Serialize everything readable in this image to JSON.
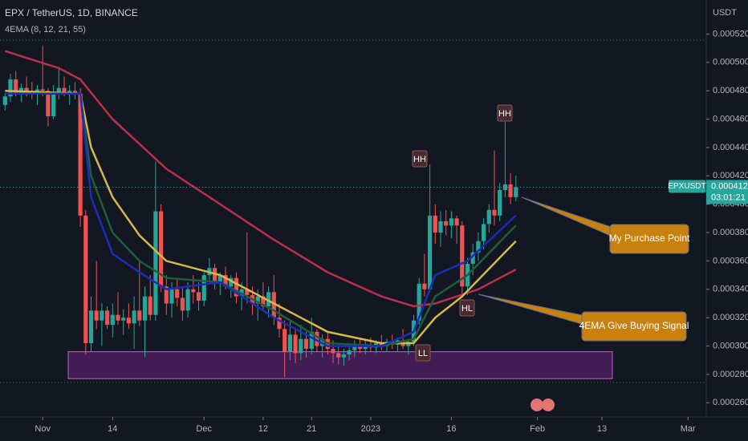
{
  "chart_data": {
    "type": "candlestick",
    "title": "EPX / TetherUS, 1D, BINANCE",
    "indicator_label": "4EMA (8, 12, 21, 55)",
    "y_axis_unit": "USDT",
    "symbol_tag": "EPXUSDT",
    "countdown": "03:01:21",
    "up_color": "#26a69a",
    "down_color": "#ef5350",
    "ylim": [
      0.00025,
      0.000544
    ],
    "yticks": [
      {
        "value": 0.00026,
        "label": "0.000260"
      },
      {
        "value": 0.00028,
        "label": "0.000280"
      },
      {
        "value": 0.0003,
        "label": "0.000300"
      },
      {
        "value": 0.00032,
        "label": "0.000320"
      },
      {
        "value": 0.00034,
        "label": "0.000340"
      },
      {
        "value": 0.00036,
        "label": "0.000360"
      },
      {
        "value": 0.00038,
        "label": "0.000380"
      },
      {
        "value": 0.0004,
        "label": "0.000400"
      },
      {
        "value": 0.00042,
        "label": "0.000420"
      },
      {
        "value": 0.00044,
        "label": "0.000440"
      },
      {
        "value": 0.00046,
        "label": "0.000460"
      },
      {
        "value": 0.00048,
        "label": "0.000480"
      },
      {
        "value": 0.0005,
        "label": "0.000500"
      },
      {
        "value": 0.00052,
        "label": "0.000520"
      }
    ],
    "xlim": [
      -1,
      130
    ],
    "xticks": [
      {
        "value": 7,
        "label": "Nov"
      },
      {
        "value": 20,
        "label": "14"
      },
      {
        "value": 37,
        "label": "Dec"
      },
      {
        "value": 48,
        "label": "12"
      },
      {
        "value": 57,
        "label": "21"
      },
      {
        "value": 68,
        "label": "2023"
      },
      {
        "value": 83,
        "label": "16"
      },
      {
        "value": 99,
        "label": "Feb"
      },
      {
        "value": 111,
        "label": "13"
      },
      {
        "value": 127,
        "label": "Mar"
      }
    ],
    "last_price": {
      "value": 0.000412,
      "label": "0.000412"
    },
    "zone": {
      "low": 0.000277,
      "high": 0.000296
    },
    "candles": [
      [
        0.00047,
        0.000478,
        0.000466,
        0.000476
      ],
      [
        0.000476,
        0.000492,
        0.000472,
        0.000488
      ],
      [
        0.000488,
        0.000494,
        0.000476,
        0.000478
      ],
      [
        0.000478,
        0.000485,
        0.000472,
        0.000482
      ],
      [
        0.000482,
        0.00049,
        0.000476,
        0.00048
      ],
      [
        0.00048,
        0.000486,
        0.000474,
        0.000478
      ],
      [
        0.000478,
        0.000484,
        0.00047,
        0.000481
      ],
      [
        0.000481,
        0.000512,
        0.000476,
        0.00048
      ],
      [
        0.00048,
        0.000482,
        0.000455,
        0.000462
      ],
      [
        0.000462,
        0.000484,
        0.00046,
        0.000478
      ],
      [
        0.000478,
        0.000496,
        0.000474,
        0.000482
      ],
      [
        0.000482,
        0.00049,
        0.000476,
        0.000478
      ],
      [
        0.000478,
        0.000484,
        0.00047,
        0.00048
      ],
      [
        0.00048,
        0.000486,
        0.000474,
        0.000478
      ],
      [
        0.000478,
        0.000482,
        0.000384,
        0.000392
      ],
      [
        0.000392,
        0.000396,
        0.000294,
        0.000302
      ],
      [
        0.000302,
        0.000335,
        0.000296,
        0.000325
      ],
      [
        0.000325,
        0.00036,
        0.000312,
        0.000318
      ],
      [
        0.000318,
        0.00033,
        0.0003,
        0.000325
      ],
      [
        0.000325,
        0.000328,
        0.000312,
        0.000315
      ],
      [
        0.000315,
        0.00033,
        0.000306,
        0.000322
      ],
      [
        0.000322,
        0.000338,
        0.000315,
        0.000318
      ],
      [
        0.000318,
        0.000326,
        0.000308,
        0.00032
      ],
      [
        0.00032,
        0.00033,
        0.000312,
        0.000316
      ],
      [
        0.000316,
        0.000335,
        0.000298,
        0.000325
      ],
      [
        0.000325,
        0.00036,
        0.000314,
        0.000318
      ],
      [
        0.000318,
        0.000342,
        0.000292,
        0.000335
      ],
      [
        0.000335,
        0.00035,
        0.000318,
        0.000322
      ],
      [
        0.000322,
        0.00043,
        0.000318,
        0.000395
      ],
      [
        0.000395,
        0.0004,
        0.000338,
        0.000342
      ],
      [
        0.000342,
        0.00035,
        0.000322,
        0.00033
      ],
      [
        0.00033,
        0.000345,
        0.00032,
        0.00034
      ],
      [
        0.00034,
        0.000348,
        0.000328,
        0.000334
      ],
      [
        0.000334,
        0.000342,
        0.000318,
        0.000325
      ],
      [
        0.000325,
        0.000345,
        0.00032,
        0.00034
      ],
      [
        0.00034,
        0.00035,
        0.00033,
        0.000338
      ],
      [
        0.000338,
        0.000345,
        0.000325,
        0.000332
      ],
      [
        0.000332,
        0.000352,
        0.000328,
        0.00035
      ],
      [
        0.00035,
        0.000362,
        0.000345,
        0.000355
      ],
      [
        0.000355,
        0.000358,
        0.00034,
        0.000344
      ],
      [
        0.000344,
        0.000352,
        0.000336,
        0.00035
      ],
      [
        0.00035,
        0.000356,
        0.00034,
        0.000342
      ],
      [
        0.000342,
        0.00035,
        0.000334,
        0.000348
      ],
      [
        0.000348,
        0.000352,
        0.00033,
        0.000335
      ],
      [
        0.000335,
        0.000345,
        0.000325,
        0.00034
      ],
      [
        0.00034,
        0.00038,
        0.00033,
        0.000336
      ],
      [
        0.000336,
        0.000342,
        0.000322,
        0.00033
      ],
      [
        0.00033,
        0.00034,
        0.000318,
        0.000335
      ],
      [
        0.000335,
        0.000345,
        0.000326,
        0.000328
      ],
      [
        0.000328,
        0.000342,
        0.00032,
        0.000338
      ],
      [
        0.000338,
        0.00035,
        0.000315,
        0.00032
      ],
      [
        0.00032,
        0.00033,
        0.000306,
        0.000312
      ],
      [
        0.000312,
        0.000318,
        0.000278,
        0.000296
      ],
      [
        0.000296,
        0.000318,
        0.00029,
        0.000308
      ],
      [
        0.000308,
        0.000312,
        0.000288,
        0.000295
      ],
      [
        0.000295,
        0.000315,
        0.00029,
        0.000305
      ],
      [
        0.000305,
        0.00031,
        0.000292,
        0.000298
      ],
      [
        0.000298,
        0.00032,
        0.000294,
        0.00031
      ],
      [
        0.00031,
        0.000312,
        0.000296,
        0.0003
      ],
      [
        0.0003,
        0.000308,
        0.000292,
        0.000305
      ],
      [
        0.000305,
        0.00031,
        0.000294,
        0.000298
      ],
      [
        0.000298,
        0.000304,
        0.000288,
        0.000295
      ],
      [
        0.000295,
        0.0003,
        0.000287,
        0.000292
      ],
      [
        0.000292,
        0.000298,
        0.000286,
        0.000294
      ],
      [
        0.000294,
        0.000302,
        0.00029,
        0.000297
      ],
      [
        0.000297,
        0.000304,
        0.000292,
        0.0003
      ],
      [
        0.0003,
        0.000306,
        0.000295,
        0.000298
      ],
      [
        0.000298,
        0.000304,
        0.000294,
        0.000301
      ],
      [
        0.000301,
        0.000306,
        0.000296,
        0.000299
      ],
      [
        0.000299,
        0.000304,
        0.000295,
        0.000302
      ],
      [
        0.000302,
        0.000308,
        0.000297,
        0.0003
      ],
      [
        0.0003,
        0.000305,
        0.000296,
        0.000303
      ],
      [
        0.000303,
        0.000308,
        0.000298,
        0.000301
      ],
      [
        0.000301,
        0.000306,
        0.000296,
        0.000304
      ],
      [
        0.000304,
        0.000312,
        0.000298,
        0.0003
      ],
      [
        0.0003,
        0.000305,
        0.000294,
        0.000303
      ],
      [
        0.000303,
        0.000322,
        0.0003,
        0.000318
      ],
      [
        0.000318,
        0.000348,
        0.000315,
        0.000344
      ],
      [
        0.000344,
        0.000365,
        0.000335,
        0.00034
      ],
      [
        0.00034,
        0.000428,
        0.000338,
        0.000392
      ],
      [
        0.000392,
        0.0004,
        0.000372,
        0.00038
      ],
      [
        0.00038,
        0.000395,
        0.00037,
        0.000388
      ],
      [
        0.000388,
        0.000396,
        0.000378,
        0.000385
      ],
      [
        0.000385,
        0.000395,
        0.000376,
        0.00039
      ],
      [
        0.00039,
        0.000392,
        0.000372,
        0.000385
      ],
      [
        0.000385,
        0.000388,
        0.000335,
        0.000342
      ],
      [
        0.000342,
        0.000362,
        0.000336,
        0.000358
      ],
      [
        0.000358,
        0.000372,
        0.00035,
        0.000366
      ],
      [
        0.000366,
        0.00038,
        0.00036,
        0.000374
      ],
      [
        0.000374,
        0.00039,
        0.000368,
        0.000386
      ],
      [
        0.000386,
        0.0004,
        0.00038,
        0.000396
      ],
      [
        0.000396,
        0.000438,
        0.000385,
        0.000392
      ],
      [
        0.000392,
        0.000415,
        0.000388,
        0.00041
      ],
      [
        0.00041,
        0.000458,
        0.000405,
        0.000414
      ],
      [
        0.000414,
        0.000422,
        0.0004,
        0.000405
      ],
      [
        0.000405,
        0.00042,
        0.000402,
        0.000412
      ]
    ],
    "series": [
      {
        "color": "#b8304a",
        "x": [
          0,
          10,
          14,
          20,
          30,
          40,
          50,
          60,
          70,
          76,
          80,
          88,
          95
        ],
        "values": [
          0.000508,
          0.000496,
          0.000488,
          0.00046,
          0.000425,
          0.0004,
          0.000375,
          0.000352,
          0.000335,
          0.000328,
          0.00033,
          0.00034,
          0.000354
        ]
      },
      {
        "color": "#d4b84a",
        "x": [
          0,
          14,
          16,
          20,
          25,
          30,
          40,
          50,
          60,
          70,
          76,
          80,
          85,
          95
        ],
        "values": [
          0.00048,
          0.000478,
          0.00044,
          0.000405,
          0.000378,
          0.00036,
          0.00035,
          0.00033,
          0.00031,
          0.000302,
          0.000302,
          0.00032,
          0.000335,
          0.000374
        ]
      },
      {
        "color": "#1f5e3a",
        "x": [
          0,
          14,
          16,
          20,
          25,
          30,
          40,
          50,
          60,
          70,
          76,
          80,
          86,
          95
        ],
        "values": [
          0.000478,
          0.000478,
          0.00042,
          0.00038,
          0.00036,
          0.000348,
          0.000345,
          0.000325,
          0.000302,
          0.0003,
          0.000305,
          0.000335,
          0.00035,
          0.000385
        ]
      },
      {
        "color": "#1a2db8",
        "x": [
          0,
          14,
          16,
          20,
          25,
          30,
          40,
          50,
          60,
          70,
          76,
          80,
          86,
          95
        ],
        "values": [
          0.000478,
          0.000478,
          0.000405,
          0.000365,
          0.000352,
          0.00034,
          0.000345,
          0.00032,
          0.0003,
          0.0003,
          0.00031,
          0.00035,
          0.00036,
          0.000392
        ]
      }
    ],
    "annotations": [
      "HH",
      "HH",
      "HL",
      "LL",
      "My Purchase Point",
      "4EMA Give Buying Signal"
    ]
  }
}
